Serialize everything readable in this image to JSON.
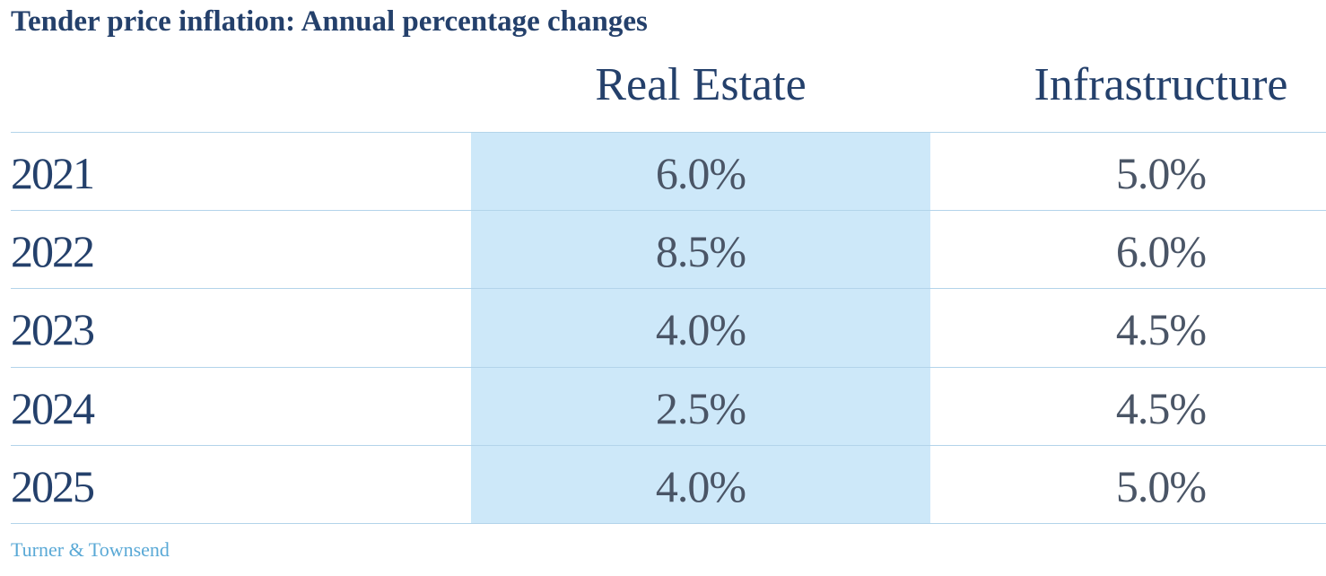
{
  "title": "Tender price inflation: Annual percentage changes",
  "source": "Turner & Townsend",
  "colors": {
    "title": "#24406b",
    "highlight": "#cde8f9",
    "row_divider": "#b3d4ea",
    "value_text": "#4a5566",
    "source_text": "#5aa9d6"
  },
  "chart_data": {
    "type": "table",
    "title": "Tender price inflation: Annual percentage changes",
    "columns": [
      "Real Estate",
      "Infrastructure"
    ],
    "rows": [
      {
        "year": "2021",
        "real_estate": "6.0%",
        "infrastructure": "5.0%"
      },
      {
        "year": "2022",
        "real_estate": "8.5%",
        "infrastructure": "6.0%"
      },
      {
        "year": "2023",
        "real_estate": "4.0%",
        "infrastructure": "4.5%"
      },
      {
        "year": "2024",
        "real_estate": "2.5%",
        "infrastructure": "4.5%"
      },
      {
        "year": "2025",
        "real_estate": "4.0%",
        "infrastructure": "5.0%"
      }
    ],
    "highlighted_column": "Real Estate"
  }
}
